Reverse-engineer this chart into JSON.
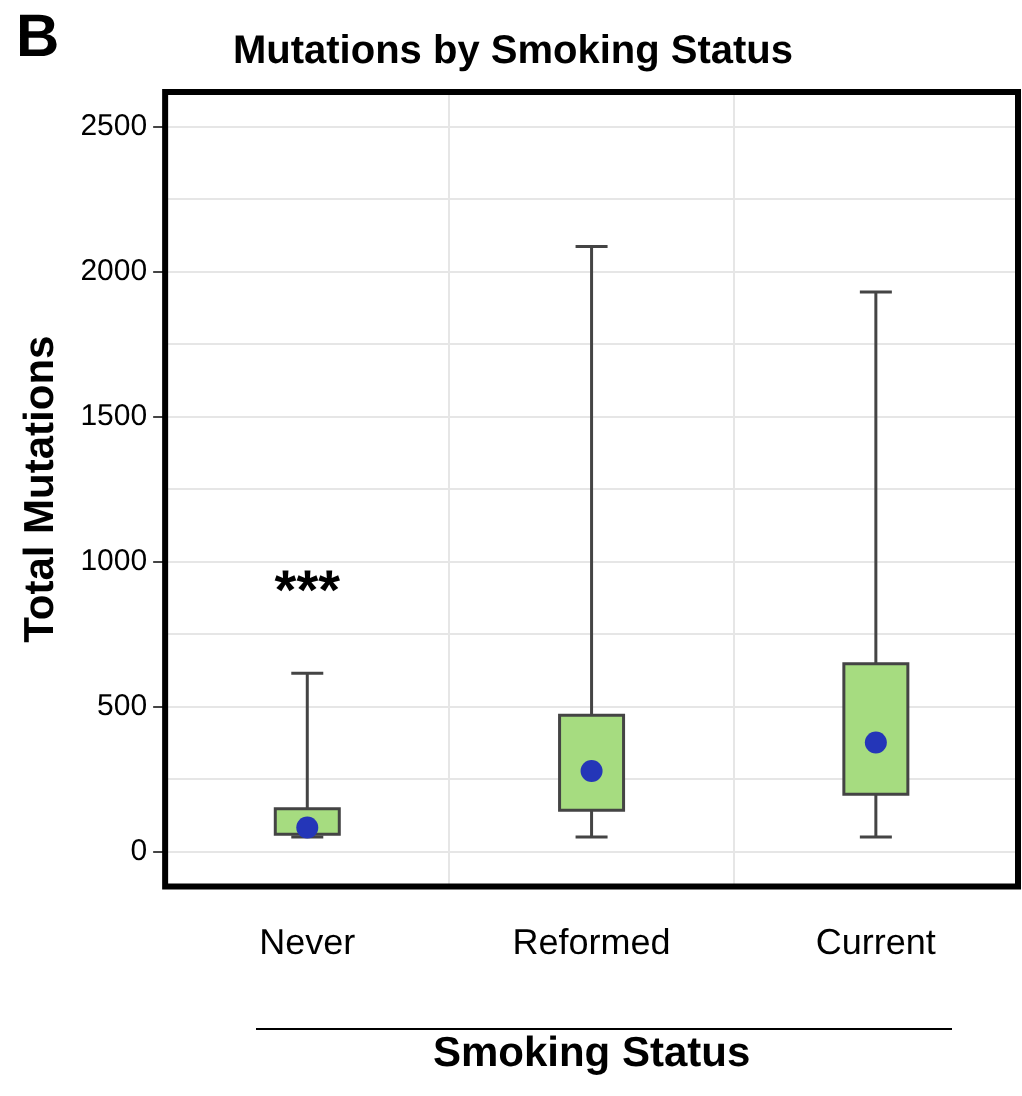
{
  "chart_data": {
    "type": "box",
    "title": "Mutations by Smoking Status",
    "xlabel": "Smoking Status",
    "ylabel": "Total Mutations",
    "categories": [
      "Never",
      "Reformed",
      "Current"
    ],
    "boxes": [
      {
        "low": 50,
        "q1": 60,
        "median": 83,
        "q3": 148,
        "high": 615
      },
      {
        "low": 50,
        "q1": 143,
        "median": 278,
        "q3": 470,
        "high": 2087
      },
      {
        "low": 50,
        "q1": 198,
        "median": 376,
        "q3": 648,
        "high": 1930
      }
    ],
    "color": "#a6dc80",
    "ylim": [
      -120,
      2620
    ],
    "yticks": [
      0,
      {
        "value": 250,
        "label": null
      },
      500,
      {
        "value": 750,
        "label": null
      },
      1000,
      {
        "value": 1250,
        "label": null
      },
      1500,
      {
        "value": 1750,
        "label": null
      },
      2000,
      {
        "value": 2250,
        "label": null
      },
      2500
    ],
    "grid": true,
    "annotations": [
      "B",
      "***"
    ]
  }
}
